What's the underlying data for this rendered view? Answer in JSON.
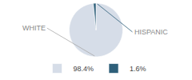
{
  "chart_data": {
    "type": "pie",
    "categories": [
      "98.4%",
      "1.6%"
    ],
    "values": [
      98.4,
      1.6
    ],
    "colors": [
      "#d6dde8",
      "#2e5f7a"
    ],
    "annotations": [
      "WHITE",
      "HISPANIC"
    ],
    "legend": "bottom"
  }
}
